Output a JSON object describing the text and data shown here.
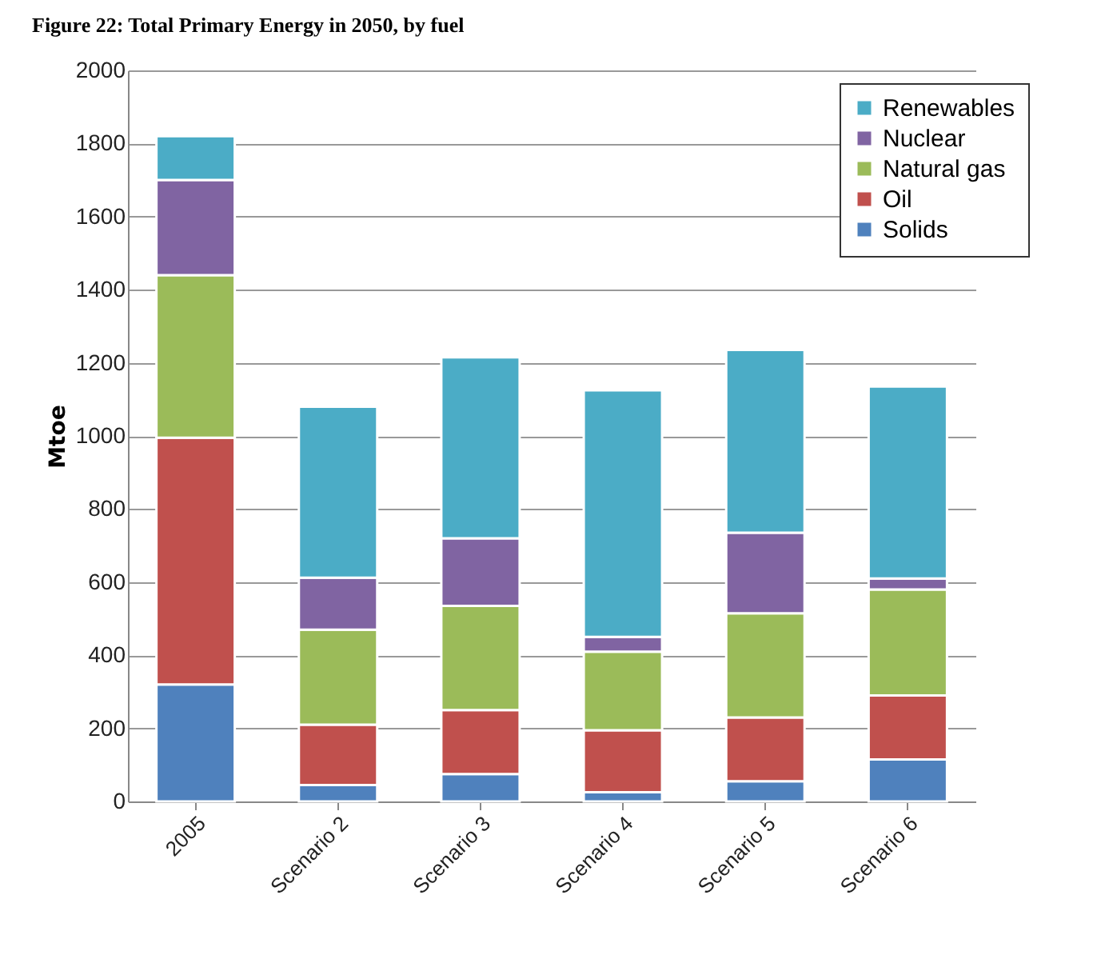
{
  "chart_data": {
    "type": "bar",
    "title": "Figure 22: Total Primary Energy in 2050, by fuel",
    "ylabel": "Mtoe",
    "categories": [
      "2005",
      "Scenario 2",
      "Scenario 3",
      "Scenario 4",
      "Scenario 5",
      "Scenario 6"
    ],
    "stacked": true,
    "ylim": [
      0,
      2000
    ],
    "yticks": [
      0,
      200,
      400,
      600,
      800,
      1000,
      1200,
      1400,
      1600,
      1800,
      2000
    ],
    "grid": "y",
    "legend": "top right",
    "series": [
      {
        "name": "Solids",
        "color": "#4f81bd",
        "values": [
          320,
          45,
          75,
          25,
          55,
          115
        ]
      },
      {
        "name": "Oil",
        "color": "#c0504d",
        "values": [
          675,
          165,
          175,
          170,
          175,
          175
        ]
      },
      {
        "name": "Natural gas",
        "color": "#9bbb59",
        "values": [
          445,
          260,
          285,
          215,
          285,
          290
        ]
      },
      {
        "name": "Nuclear",
        "color": "#8064a2",
        "values": [
          260,
          142,
          185,
          40,
          220,
          30
        ]
      },
      {
        "name": "Renewables",
        "color": "#4bacc6",
        "values": [
          120,
          468,
          495,
          675,
          500,
          525
        ]
      }
    ]
  }
}
